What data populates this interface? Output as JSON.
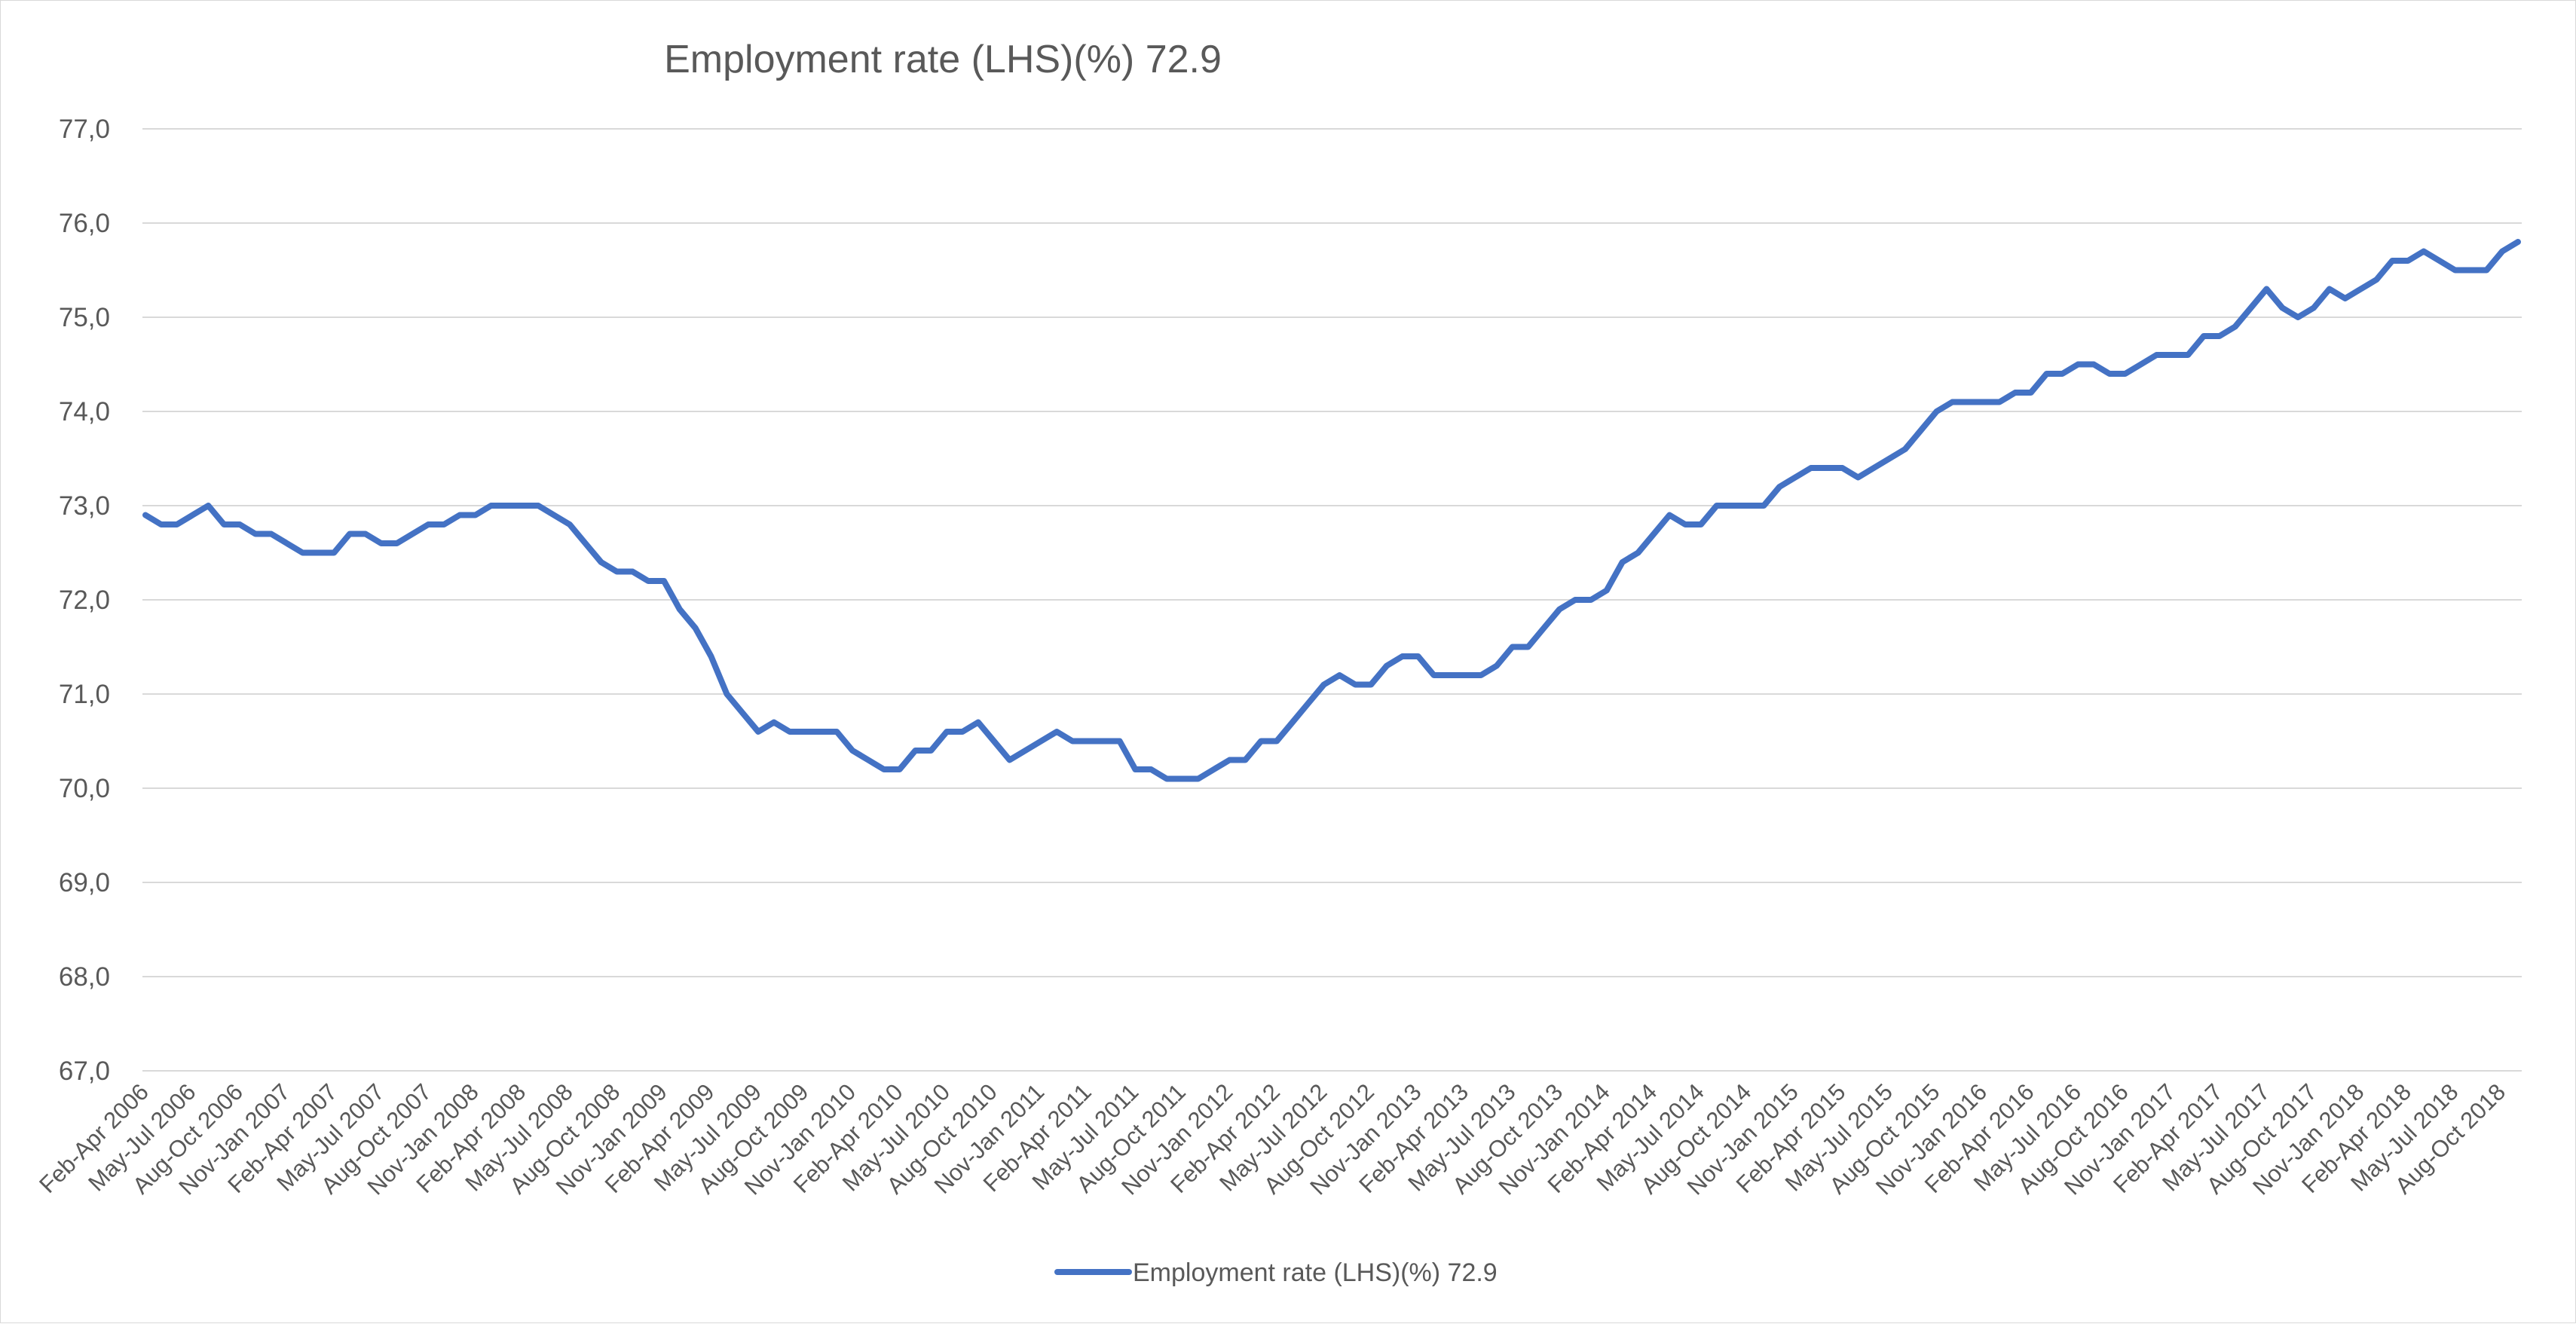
{
  "chart_data": {
    "type": "line",
    "title": "Employment rate (LHS)(%) 72.9",
    "xlabel": "",
    "ylabel": "",
    "ylim": [
      67,
      77
    ],
    "yticks": [
      "67,0",
      "68,0",
      "69,0",
      "70,0",
      "71,0",
      "72,0",
      "73,0",
      "74,0",
      "75,0",
      "76,0",
      "77,0"
    ],
    "grid": true,
    "legend_position": "bottom",
    "x_tick_labels": [
      "Feb-Apr 2006",
      "May-Jul 2006",
      "Aug-Oct 2006",
      "Nov-Jan 2007",
      "Feb-Apr 2007",
      "May-Jul 2007",
      "Aug-Oct 2007",
      "Nov-Jan 2008",
      "Feb-Apr 2008",
      "May-Jul 2008",
      "Aug-Oct 2008",
      "Nov-Jan 2009",
      "Feb-Apr 2009",
      "May-Jul 2009",
      "Aug-Oct 2009",
      "Nov-Jan 2010",
      "Feb-Apr 2010",
      "May-Jul 2010",
      "Aug-Oct 2010",
      "Nov-Jan 2011",
      "Feb-Apr 2011",
      "May-Jul 2011",
      "Aug-Oct 2011",
      "Nov-Jan 2012",
      "Feb-Apr 2012",
      "May-Jul 2012",
      "Aug-Oct 2012",
      "Nov-Jan 2013",
      "Feb-Apr 2013",
      "May-Jul 2013",
      "Aug-Oct 2013",
      "Nov-Jan 2014",
      "Feb-Apr 2014",
      "May-Jul 2014",
      "Aug-Oct 2014",
      "Nov-Jan 2015",
      "Feb-Apr 2015",
      "May-Jul 2015",
      "Aug-Oct 2015",
      "Nov-Jan 2016",
      "Feb-Apr 2016",
      "May-Jul 2016",
      "Aug-Oct 2016",
      "Nov-Jan 2017",
      "Feb-Apr 2017",
      "May-Jul 2017",
      "Aug-Oct 2017",
      "Nov-Jan 2018",
      "Feb-Apr 2018",
      "May-Jul 2018",
      "Aug-Oct 2018"
    ],
    "points_per_tick": 3,
    "series": [
      {
        "name": "Employment rate (LHS)(%) 72.9",
        "color": "#4472c4",
        "values": [
          72.9,
          72.8,
          72.8,
          72.9,
          73.0,
          72.8,
          72.8,
          72.7,
          72.7,
          72.6,
          72.5,
          72.5,
          72.5,
          72.7,
          72.7,
          72.6,
          72.6,
          72.7,
          72.8,
          72.8,
          72.9,
          72.9,
          73.0,
          73.0,
          73.0,
          73.0,
          72.9,
          72.8,
          72.6,
          72.4,
          72.3,
          72.3,
          72.2,
          72.2,
          71.9,
          71.7,
          71.4,
          71.0,
          70.8,
          70.6,
          70.7,
          70.6,
          70.6,
          70.6,
          70.6,
          70.4,
          70.3,
          70.2,
          70.2,
          70.4,
          70.4,
          70.6,
          70.6,
          70.7,
          70.5,
          70.3,
          70.4,
          70.5,
          70.6,
          70.5,
          70.5,
          70.5,
          70.5,
          70.2,
          70.2,
          70.1,
          70.1,
          70.1,
          70.2,
          70.3,
          70.3,
          70.5,
          70.5,
          70.7,
          70.9,
          71.1,
          71.2,
          71.1,
          71.1,
          71.3,
          71.4,
          71.4,
          71.2,
          71.2,
          71.2,
          71.2,
          71.3,
          71.5,
          71.5,
          71.7,
          71.9,
          72.0,
          72.0,
          72.1,
          72.4,
          72.5,
          72.7,
          72.9,
          72.8,
          72.8,
          73.0,
          73.0,
          73.0,
          73.0,
          73.2,
          73.3,
          73.4,
          73.4,
          73.4,
          73.3,
          73.4,
          73.5,
          73.6,
          73.8,
          74.0,
          74.1,
          74.1,
          74.1,
          74.1,
          74.2,
          74.2,
          74.4,
          74.4,
          74.5,
          74.5,
          74.4,
          74.4,
          74.5,
          74.6,
          74.6,
          74.6,
          74.8,
          74.8,
          74.9,
          75.1,
          75.3,
          75.1,
          75.0,
          75.1,
          75.3,
          75.2,
          75.3,
          75.4,
          75.6,
          75.6,
          75.7,
          75.6,
          75.5,
          75.5,
          75.5,
          75.7,
          75.8
        ]
      }
    ]
  }
}
